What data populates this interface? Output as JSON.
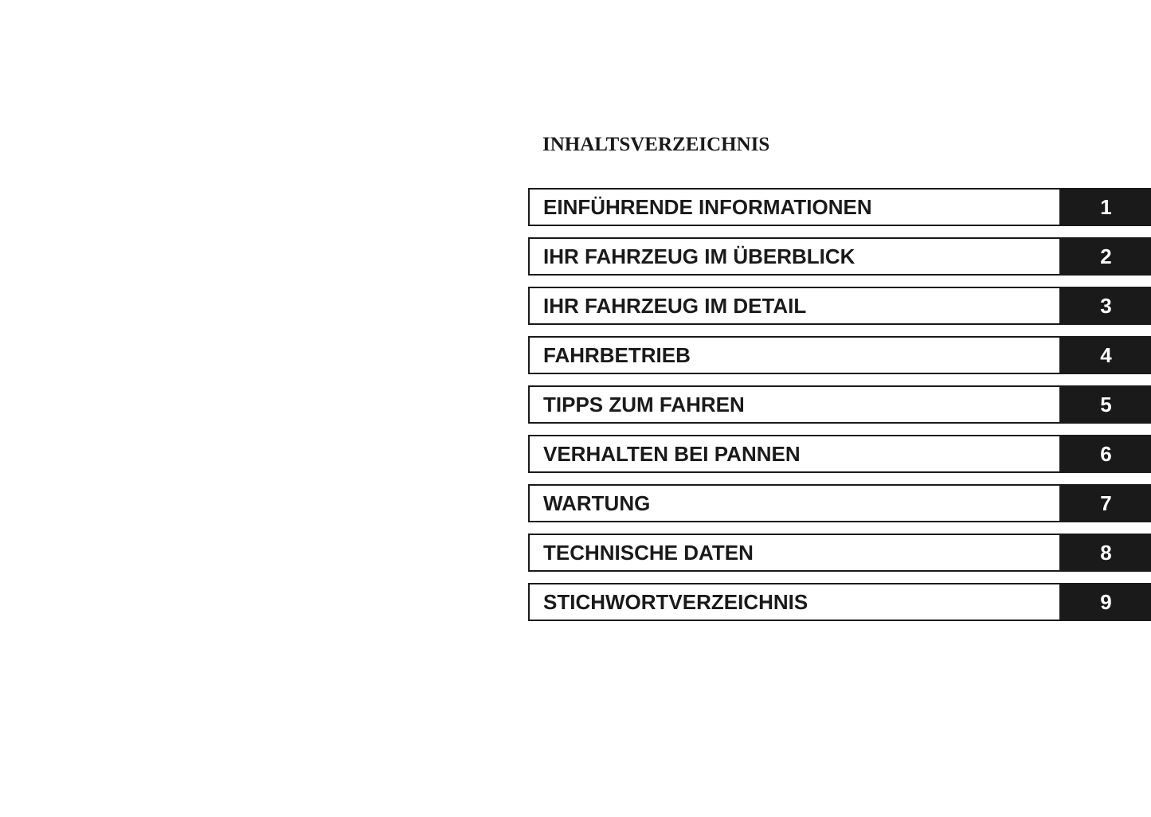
{
  "title": "INHALTSVERZEICHNIS",
  "colors": {
    "tab": "#1a1a1a",
    "text": "#1a1a1a"
  },
  "chapters": [
    {
      "label": "EINFÜHRENDE INFORMATIONEN",
      "number": "1"
    },
    {
      "label": "IHR FAHRZEUG IM ÜBERBLICK",
      "number": "2"
    },
    {
      "label": "IHR FAHRZEUG IM DETAIL",
      "number": "3"
    },
    {
      "label": "FAHRBETRIEB",
      "number": "4"
    },
    {
      "label": "TIPPS ZUM FAHREN",
      "number": "5"
    },
    {
      "label": "VERHALTEN BEI PANNEN",
      "number": "6"
    },
    {
      "label": "WARTUNG",
      "number": "7"
    },
    {
      "label": "TECHNISCHE DATEN",
      "number": "8"
    },
    {
      "label": "STICHWORTVERZEICHNIS",
      "number": "9"
    }
  ]
}
